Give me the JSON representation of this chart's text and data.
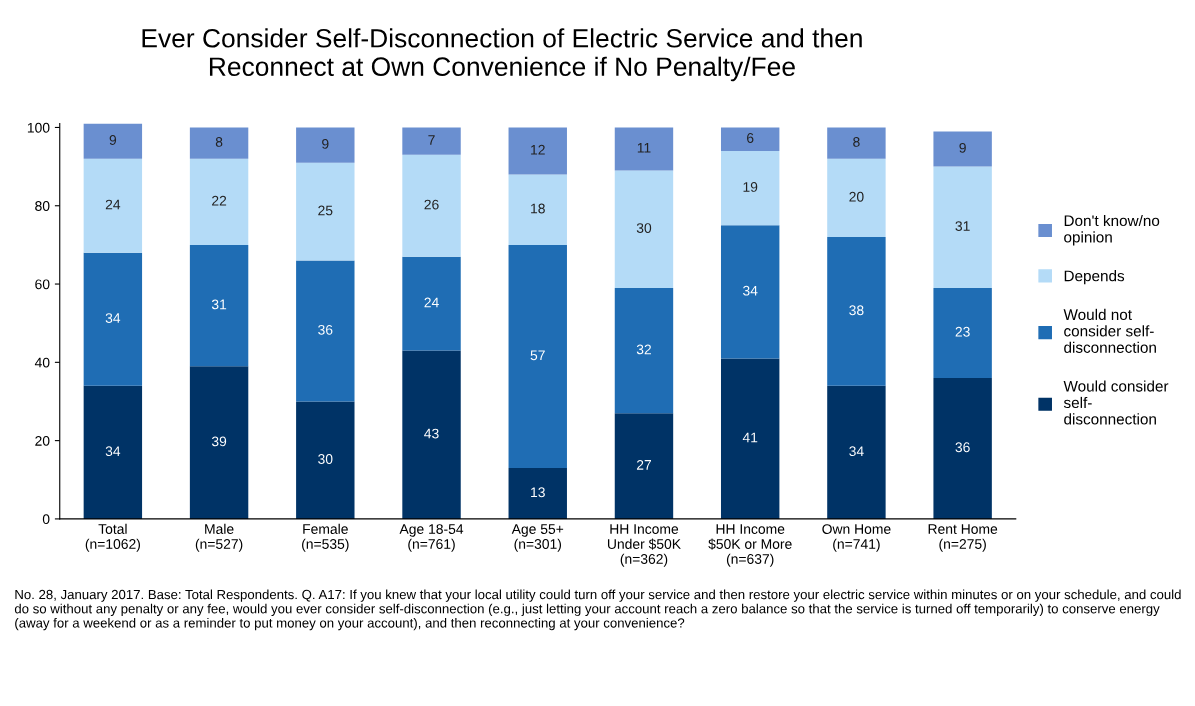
{
  "chart_data": {
    "type": "bar",
    "stacked": true,
    "title": "Ever Consider Self-Disconnection of Electric Service and then\nReconnect at Own Convenience if No Penalty/Fee",
    "categories": [
      "Total\n(n=1062)",
      "Male\n(n=527)",
      "Female\n(n=535)",
      "Age 18-54\n(n=761)",
      "Age 55+\n(n=301)",
      "HH Income\nUnder $50K\n(n=362)",
      "HH Income\n$50K or More\n(n=637)",
      "Own Home\n(n=741)",
      "Rent Home\n(n=275)"
    ],
    "series": [
      {
        "name": "Would consider\nself-\ndisconnection",
        "color": "#003366",
        "values": [
          34,
          39,
          30,
          43,
          13,
          27,
          41,
          34,
          36
        ]
      },
      {
        "name": "Would not\nconsider self-\ndisconnection",
        "color": "#1f6db4",
        "values": [
          34,
          31,
          36,
          24,
          57,
          32,
          34,
          38,
          23
        ]
      },
      {
        "name": "Depends",
        "color": "#b4dbf7",
        "values": [
          24,
          22,
          25,
          26,
          18,
          30,
          19,
          20,
          31
        ]
      },
      {
        "name": "Don't know/no\nopinion",
        "color": "#6a8fd0",
        "values": [
          9,
          8,
          9,
          7,
          12,
          11,
          6,
          8,
          9
        ]
      }
    ],
    "ylim": [
      0,
      101
    ],
    "yticks": [
      0,
      20,
      40,
      60,
      80,
      100
    ],
    "data_labels": true,
    "legend": "right",
    "grid": false,
    "annotations": [
      "No. 28, January 2017. Base: Total Respondents. Q. A17: If you knew that your local utility could turn off your service and then restore your electric service within minutes or on your schedule, and could do so without any penalty or any fee, would you ever consider self-disconnection (e.g., just letting your account reach a zero balance so that the service is turned off temporarily) to conserve energy (away for a weekend or as a reminder to put money on your account), and then reconnecting at your convenience?"
    ]
  }
}
